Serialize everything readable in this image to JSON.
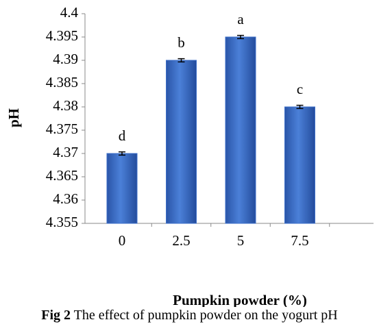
{
  "chart_data": {
    "type": "bar",
    "y_label": "pH",
    "x_label": "Pumpkin powder  (%)",
    "caption_label": "Fig 2",
    "caption": "The effect of pumpkin powder on the yogurt pH",
    "categories": [
      "0",
      "2.5",
      "5",
      "7.5"
    ],
    "values": [
      4.37,
      4.39,
      4.395,
      4.38
    ],
    "errors": [
      0.0002,
      0.0002,
      0.0002,
      0.0002
    ],
    "annotations": [
      "d",
      "b",
      "a",
      "c"
    ],
    "color": "#3d6fc8",
    "ylim": [
      4.355,
      4.4
    ],
    "yticks": [
      4.355,
      4.36,
      4.365,
      4.37,
      4.375,
      4.38,
      4.385,
      4.39,
      4.395,
      4.4
    ]
  }
}
